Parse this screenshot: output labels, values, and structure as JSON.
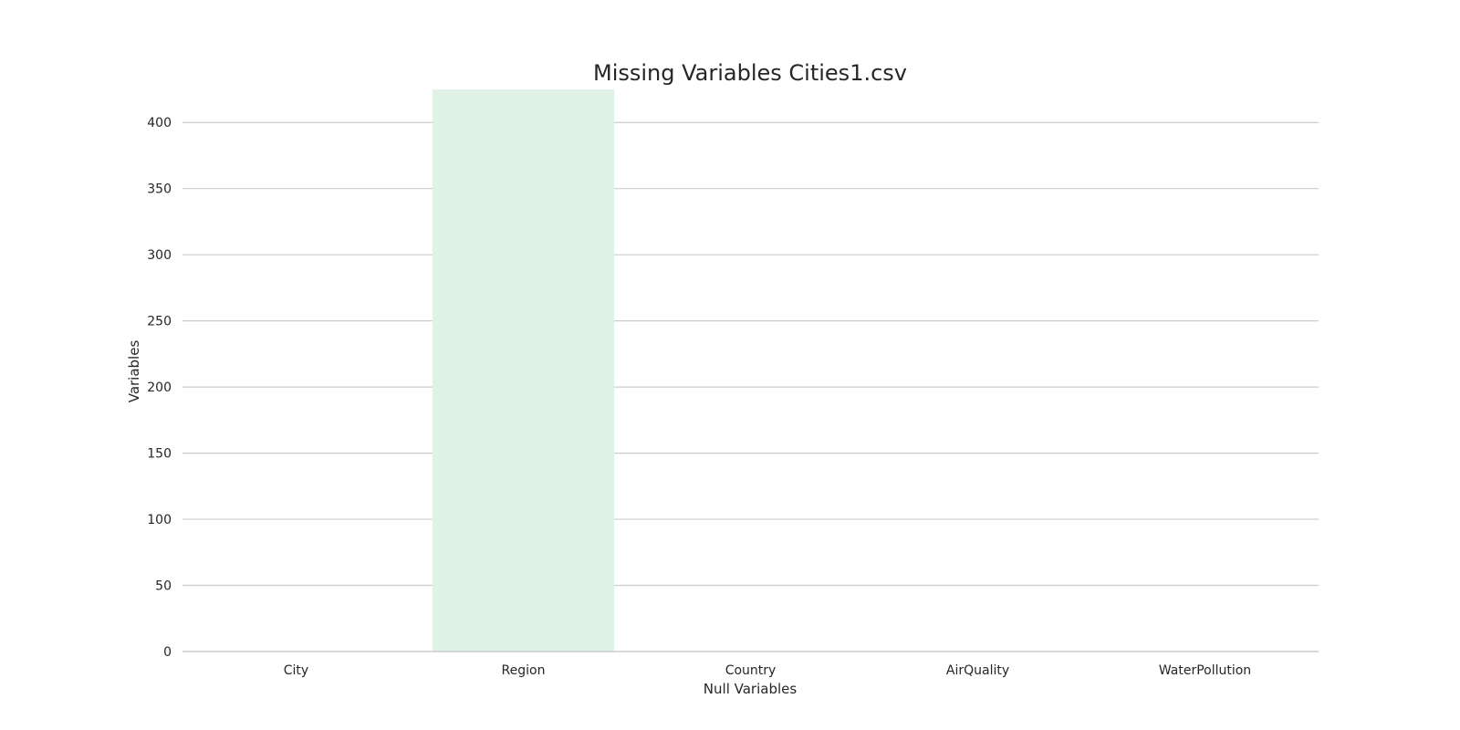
{
  "chart_data": {
    "type": "bar",
    "title": "Missing Variables Cities1.csv",
    "xlabel": "Null Variables",
    "ylabel": "Variables",
    "categories": [
      "City",
      "Region",
      "Country",
      "AirQuality",
      "WaterPollution"
    ],
    "values": [
      0,
      425,
      0,
      0,
      0
    ],
    "ylim": [
      0,
      425
    ],
    "yticks": [
      0,
      50,
      100,
      150,
      200,
      250,
      300,
      350,
      400
    ],
    "grid": true,
    "legend": "none",
    "bar_color": "#e0f2e6"
  }
}
